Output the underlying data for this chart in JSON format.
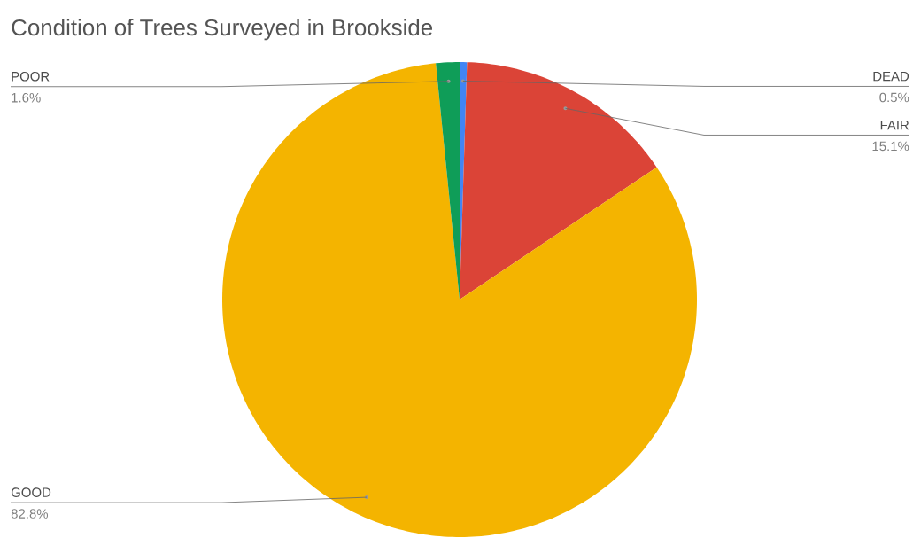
{
  "chart_data": {
    "type": "pie",
    "title": "Condition of Trees Surveyed in Brookside",
    "categories": [
      "DEAD",
      "FAIR",
      "GOOD",
      "POOR"
    ],
    "values": [
      0.5,
      15.1,
      82.8,
      1.6
    ],
    "colors": [
      "#4285f4",
      "#db4437",
      "#f4b400",
      "#0f9d58"
    ],
    "value_labels": [
      "0.5%",
      "15.1%",
      "82.8%",
      "1.6%"
    ]
  }
}
